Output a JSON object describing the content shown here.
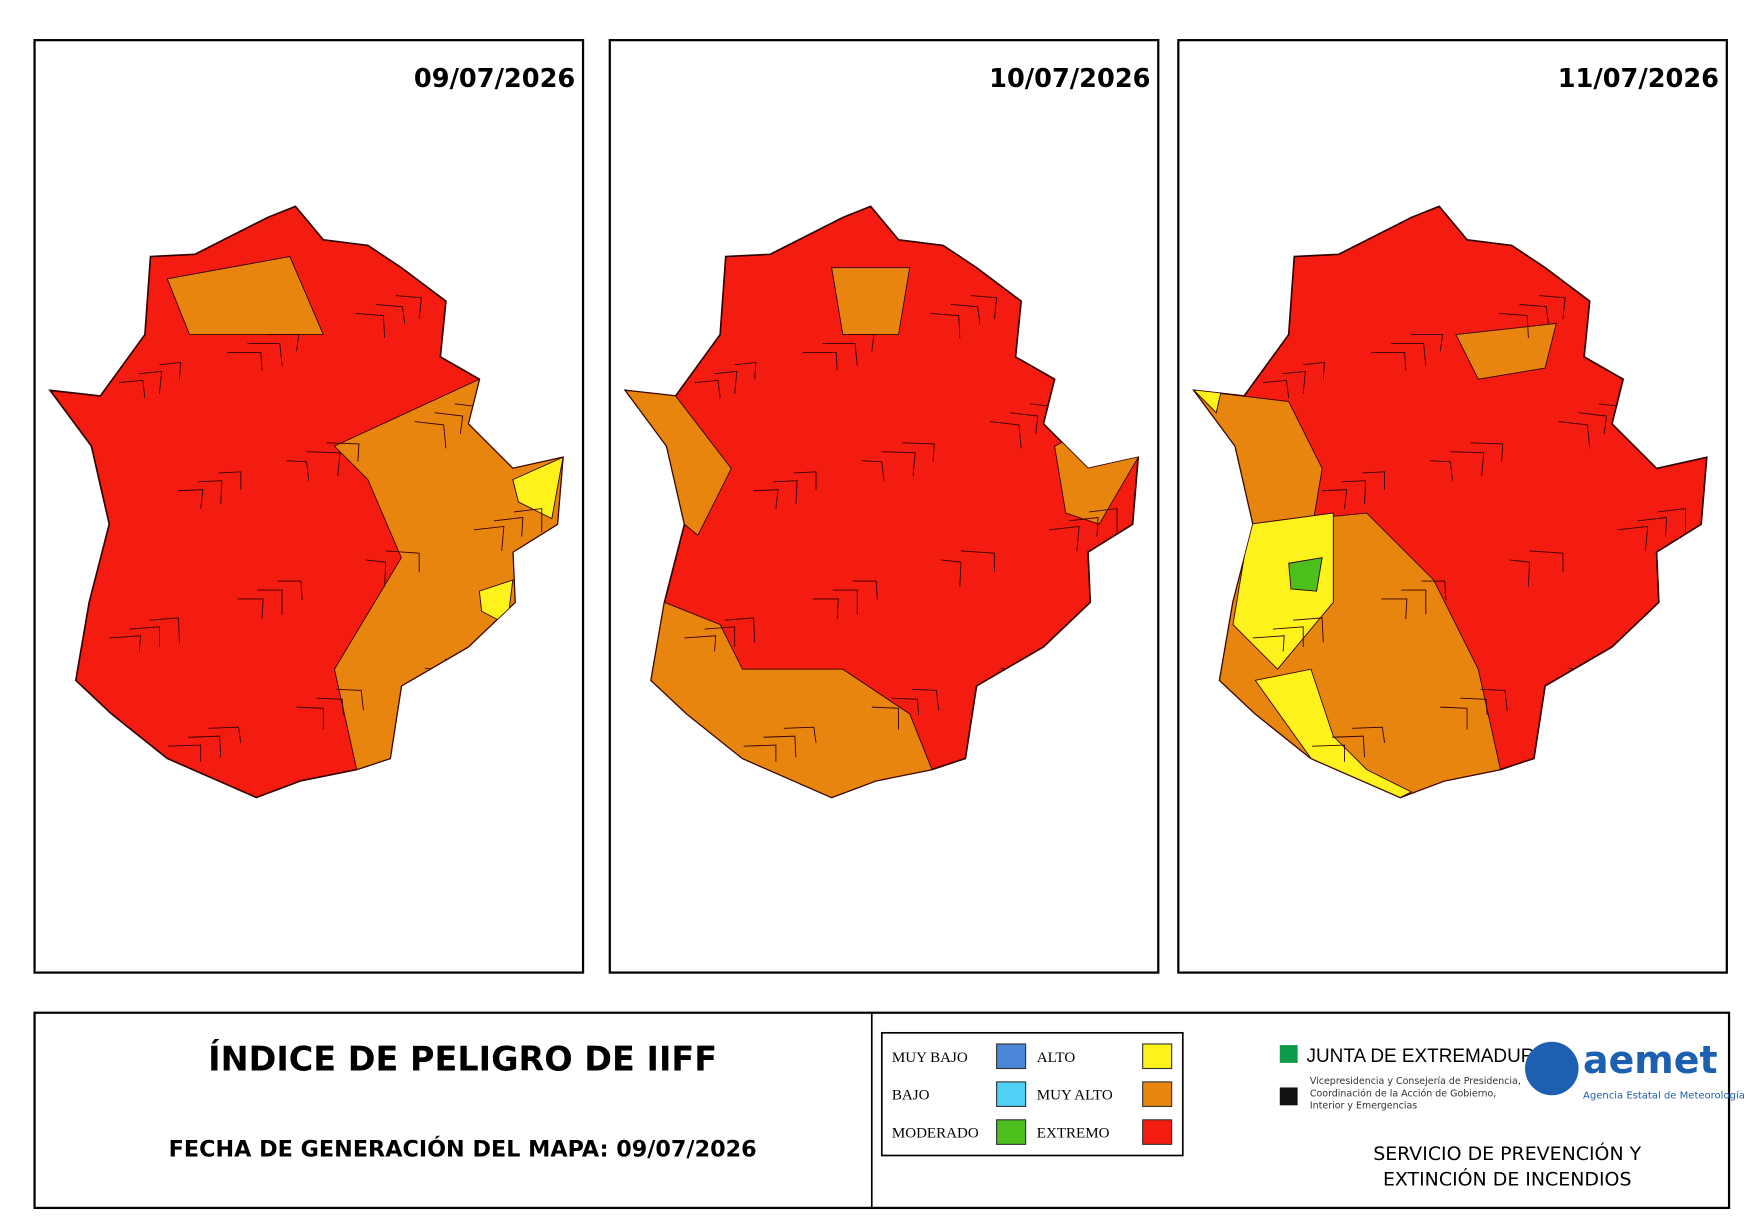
{
  "maps": [
    {
      "date": "09/07/2026"
    },
    {
      "date": "10/07/2026"
    },
    {
      "date": "11/07/2026"
    }
  ],
  "footer": {
    "title": "ÍNDICE DE PELIGRO DE IIFF",
    "generation": "FECHA DE GENERACIÓN DEL MAPA: 09/07/2026"
  },
  "legend": [
    {
      "label": "MUY BAJO",
      "color": "#4a86d8"
    },
    {
      "label": "BAJO",
      "color": "#4fd0f5"
    },
    {
      "label": "MODERADO",
      "color": "#4cbf1c"
    },
    {
      "label": "ALTO",
      "color": "#fdf21c"
    },
    {
      "label": "MUY ALTO",
      "color": "#e8850f"
    },
    {
      "label": "EXTREMO",
      "color": "#f41c10"
    }
  ],
  "logos": {
    "junta": "JUNTA DE EXTREMADURA",
    "junta_sub": [
      "Vicepresidencia y Consejería de Presidencia,",
      "Coordinación de la Acción de Gobierno,",
      "Interior y Emergencias"
    ],
    "aemet": "aemet",
    "aemet_sub": "Agencia Estatal de Meteorología"
  },
  "service": [
    "SERVICIO DE PREVENCIÓN Y",
    "EXTINCIÓN DE INCENDIOS"
  ]
}
